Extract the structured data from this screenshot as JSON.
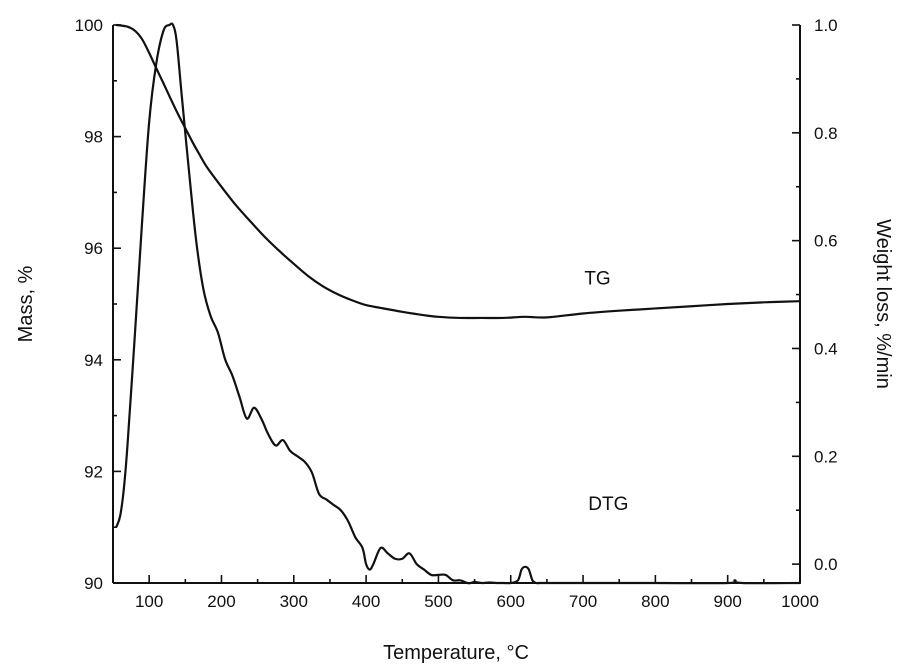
{
  "chart_data": {
    "type": "line",
    "xlabel": "Temperature, °C",
    "ylabel_left": "Mass, %",
    "ylabel_right": "Weight loss, %/min",
    "xlim": [
      50,
      1000
    ],
    "ylim_left": [
      90,
      100
    ],
    "ylim_right": [
      -0.035,
      1.0
    ],
    "x_ticks": [
      100,
      200,
      300,
      400,
      500,
      600,
      700,
      800,
      900,
      1000
    ],
    "y_left_ticks": [
      90,
      92,
      94,
      96,
      98,
      100
    ],
    "y_right_ticks": [
      0.0,
      0.2,
      0.4,
      0.6,
      0.8,
      1.0
    ],
    "y_right_tick_labels": [
      "0.0",
      "0.2",
      "0.4",
      "0.6",
      "0.8",
      "1.0"
    ],
    "grid": false,
    "series": [
      {
        "name": "TG",
        "axis": "left",
        "x": [
          55,
          70,
          80,
          90,
          100,
          110,
          120,
          130,
          140,
          150,
          160,
          170,
          180,
          200,
          220,
          240,
          260,
          280,
          300,
          320,
          340,
          360,
          380,
          400,
          420,
          450,
          480,
          500,
          530,
          560,
          590,
          620,
          650,
          700,
          750,
          800,
          850,
          900,
          950,
          1000
        ],
        "values": [
          100.0,
          99.97,
          99.9,
          99.75,
          99.5,
          99.22,
          98.95,
          98.67,
          98.4,
          98.15,
          97.9,
          97.67,
          97.45,
          97.1,
          96.77,
          96.48,
          96.2,
          95.95,
          95.72,
          95.5,
          95.32,
          95.18,
          95.07,
          94.98,
          94.93,
          94.86,
          94.8,
          94.77,
          94.75,
          94.75,
          94.75,
          94.77,
          94.76,
          94.83,
          94.88,
          94.92,
          94.96,
          95.0,
          95.03,
          95.05
        ]
      },
      {
        "name": "DTG",
        "axis": "right",
        "x": [
          55,
          60,
          65,
          70,
          80,
          90,
          100,
          110,
          120,
          128,
          133,
          138,
          145,
          155,
          165,
          175,
          185,
          195,
          205,
          215,
          225,
          235,
          245,
          255,
          265,
          275,
          285,
          295,
          305,
          315,
          325,
          335,
          345,
          355,
          365,
          375,
          385,
          395,
          400,
          405,
          410,
          420,
          430,
          440,
          450,
          460,
          470,
          480,
          490,
          500,
          510,
          520,
          530,
          540,
          545,
          550,
          560,
          570,
          580,
          590,
          600,
          610,
          615,
          620,
          625,
          630,
          635,
          640,
          650,
          700,
          800,
          900,
          910,
          920,
          1000
        ],
        "values": [
          0.07,
          0.09,
          0.14,
          0.22,
          0.42,
          0.63,
          0.82,
          0.93,
          0.99,
          1.0,
          1.0,
          0.97,
          0.87,
          0.73,
          0.6,
          0.51,
          0.46,
          0.43,
          0.38,
          0.35,
          0.31,
          0.27,
          0.29,
          0.27,
          0.24,
          0.22,
          0.23,
          0.21,
          0.2,
          0.19,
          0.17,
          0.13,
          0.12,
          0.11,
          0.1,
          0.08,
          0.05,
          0.03,
          0.0,
          -0.01,
          0.0,
          0.03,
          0.02,
          0.01,
          0.01,
          0.02,
          0.0,
          -0.01,
          -0.02,
          -0.02,
          -0.02,
          -0.03,
          -0.03,
          -0.035,
          -0.035,
          -0.033,
          -0.035,
          -0.034,
          -0.035,
          -0.035,
          -0.035,
          -0.03,
          -0.01,
          -0.005,
          -0.01,
          -0.03,
          -0.035,
          -0.035,
          -0.035,
          -0.035,
          -0.035,
          -0.035,
          -0.03,
          -0.035,
          -0.035
        ]
      }
    ],
    "annotations": [
      {
        "text": "TG",
        "series": "TG",
        "x": 720,
        "y_left": 95.35
      },
      {
        "text": "DTG",
        "series": "DTG",
        "x": 735,
        "y_right": 0.1
      }
    ]
  }
}
